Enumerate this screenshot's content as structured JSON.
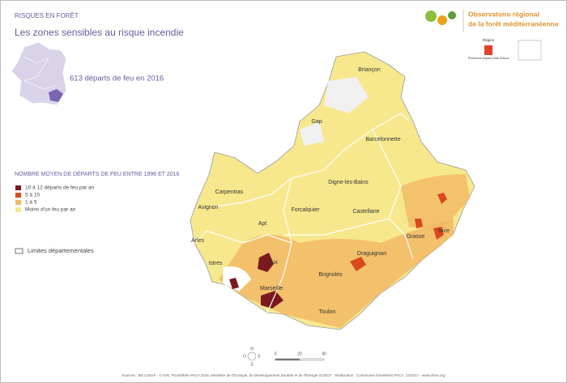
{
  "header": {
    "category": "RISQUES EN FORÊT",
    "title": "Les zones sensibles au risque incendie"
  },
  "stat": "613 départs de feu en 2016",
  "logo": {
    "line1": "Observatoire régional",
    "line2": "de la forêt méditerranéenne",
    "region": "Région",
    "region_name": "Provence-Alpes-Côte d'Azur"
  },
  "legend": {
    "title": "NOMBRE MOYEN DE DÉPARTS DE FEU ENTRE 1996 ET 2016",
    "items": [
      {
        "label": "10 à 12 départs de feu par an",
        "color": "#7a1a1f"
      },
      {
        "label": "5 à 10",
        "color": "#d9491f"
      },
      {
        "label": "1 à 5",
        "color": "#f2b865"
      },
      {
        "label": "Moins d'un feu par an",
        "color": "#f7e88e"
      }
    ],
    "boundary": "Limites départementales"
  },
  "cities": [
    "Briançon",
    "Gap",
    "Barcelonnette",
    "Carpentras",
    "Digne-les-Bains",
    "Avignon",
    "Forcalquier",
    "Castellane",
    "Apt",
    "Nice",
    "Grasse",
    "Arles",
    "Draguignan",
    "Istres",
    "Aix",
    "Brignoles",
    "Marseille",
    "Toulon"
  ],
  "compass": [
    "N",
    "E",
    "S",
    "O"
  ],
  "scale": [
    "0",
    "20",
    "40"
  ],
  "footer": "Sources : BD Carto® - © IGN, Prométhée PACA 2016, Ministère de l'Écologie, du Développement Durable et de l'Énergie 01/2017 - Réalisation : Communes forestières PACA, 12/2017 - www.ofme.org"
}
